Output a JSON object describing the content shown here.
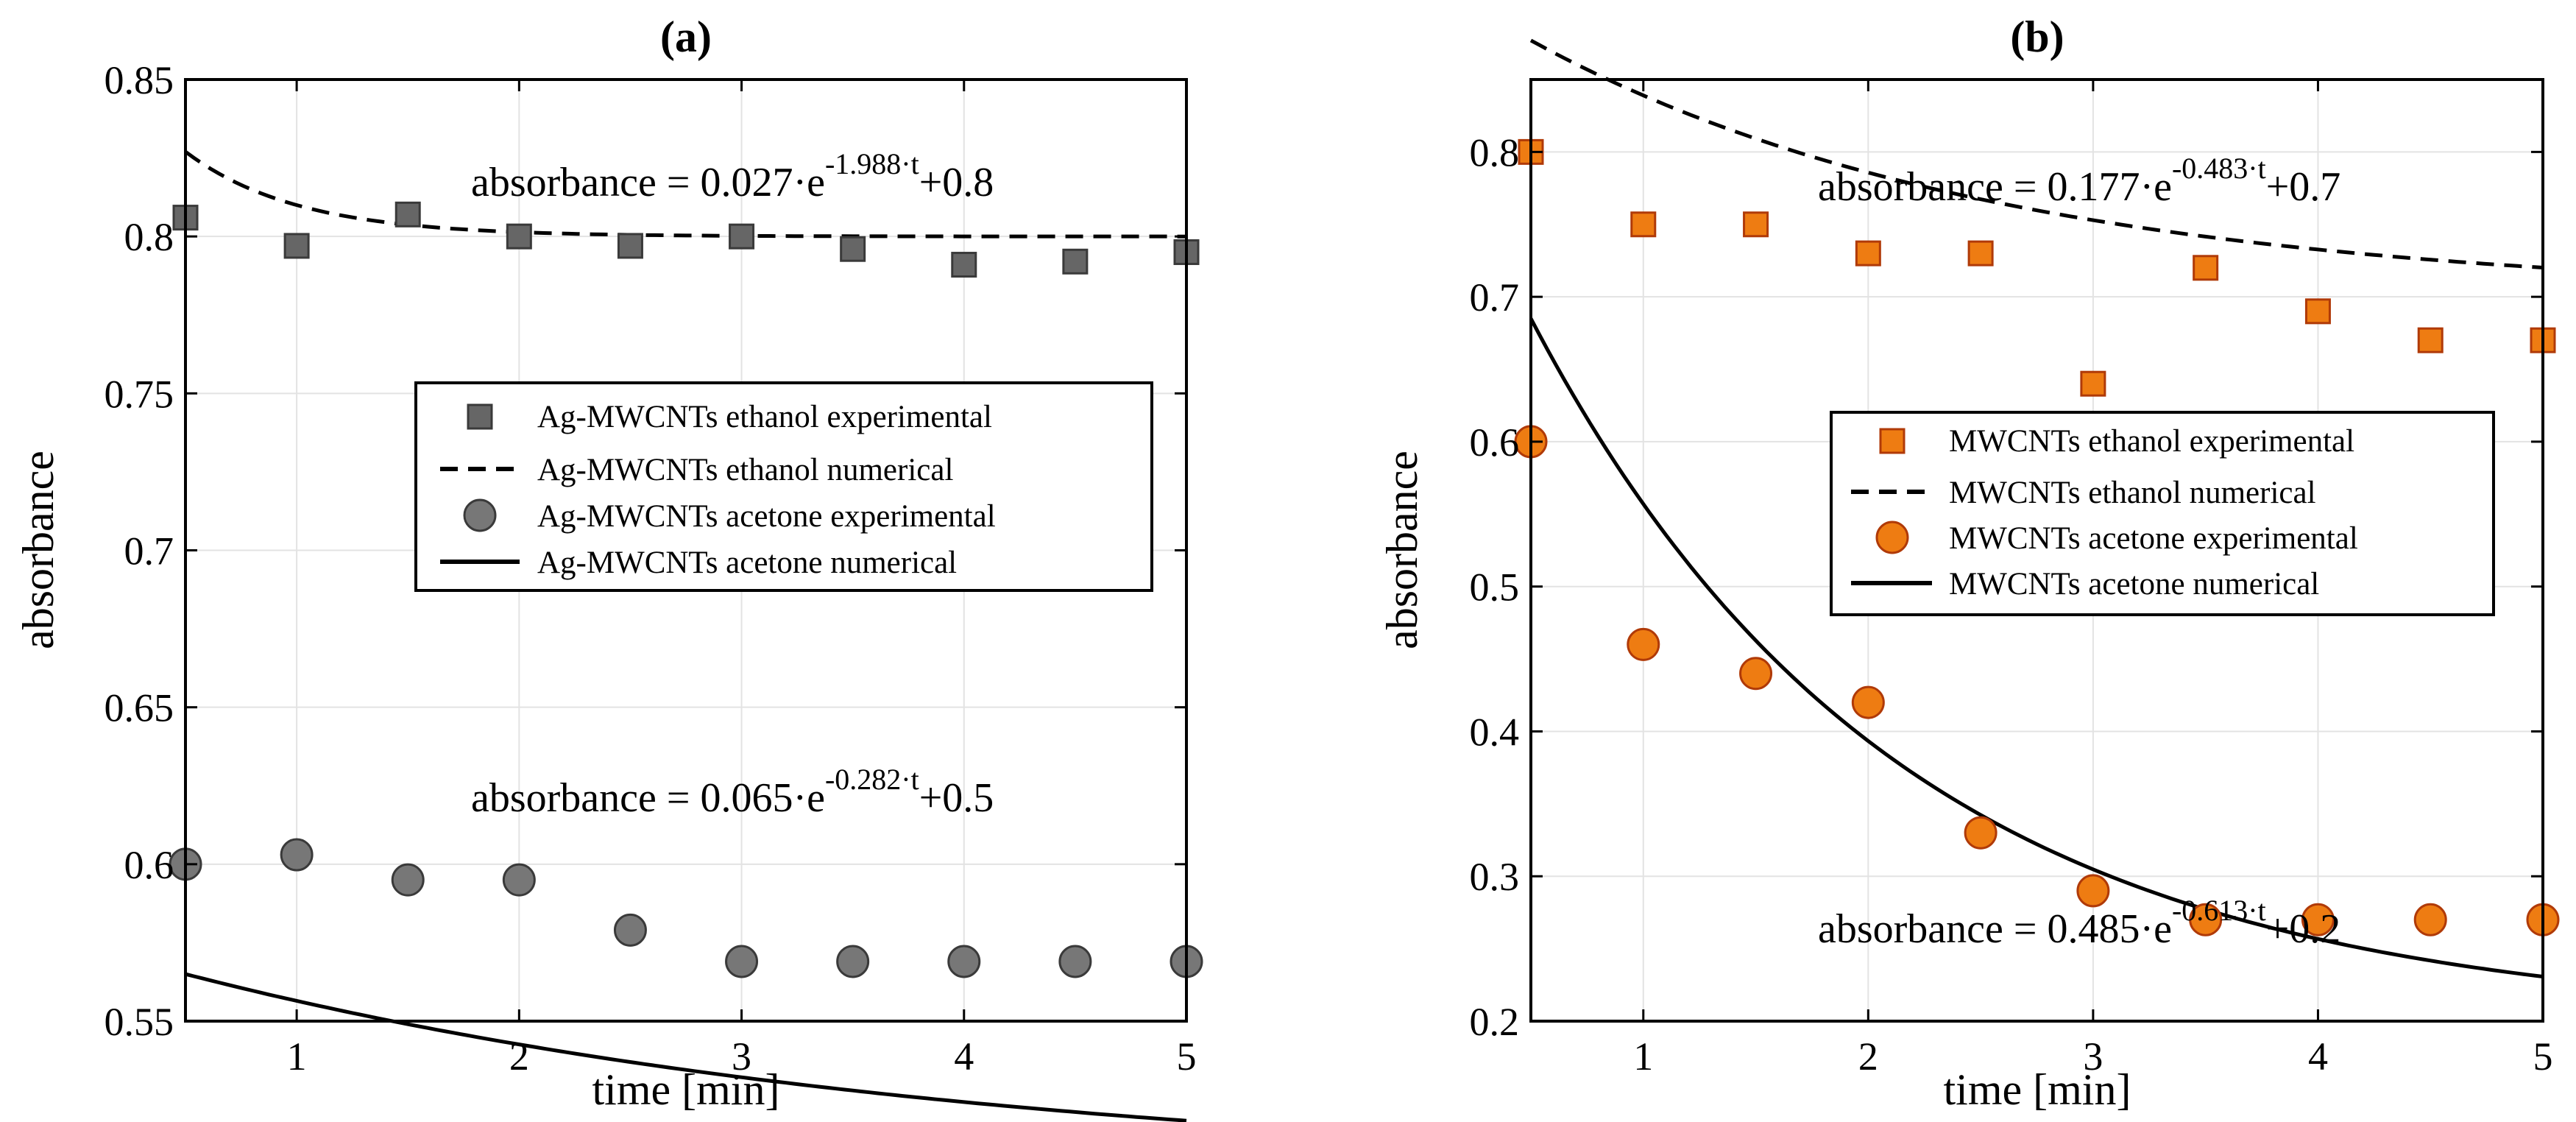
{
  "chart_data": [
    {
      "panel": "a",
      "type": "scatter",
      "title": "(a)",
      "xlabel": "time [min]",
      "ylabel": "absorbance",
      "xlim": [
        0.5,
        5
      ],
      "ylim": [
        0.55,
        0.85
      ],
      "xticks": [
        1,
        2,
        3,
        4,
        5
      ],
      "yticks": [
        0.55,
        0.6,
        0.65,
        0.7,
        0.75,
        0.8,
        0.85
      ],
      "xtick_labels": [
        "1",
        "2",
        "3",
        "4",
        "5"
      ],
      "ytick_labels": [
        "0.55",
        "0.6",
        "0.65",
        "0.7",
        "0.75",
        "0.8",
        "0.85"
      ],
      "grid": true,
      "legend_position": "center-right",
      "series": [
        {
          "name": "Ag-MWCNTs ethanol experimental",
          "kind": "marker",
          "marker": "square",
          "color": "#666666",
          "edge": "#3a3a3a",
          "x": [
            0.5,
            1,
            1.5,
            2,
            2.5,
            3,
            3.5,
            4,
            4.5,
            5
          ],
          "y": [
            0.806,
            0.797,
            0.807,
            0.8,
            0.797,
            0.8,
            0.796,
            0.791,
            0.792,
            0.795
          ]
        },
        {
          "name": "Ag-MWCNTs ethanol numerical",
          "kind": "line",
          "style": "dashed",
          "color": "#000000",
          "model": {
            "a": 0.027,
            "b": 1.988,
            "c": 0.8,
            "offset": 0.5
          }
        },
        {
          "name": "Ag-MWCNTs acetone experimental",
          "kind": "marker",
          "marker": "circle",
          "color": "#777777",
          "edge": "#3a3a3a",
          "x": [
            0.5,
            1,
            1.5,
            2,
            2.5,
            3,
            3.5,
            4,
            4.5,
            5
          ],
          "y": [
            0.6,
            0.603,
            0.595,
            0.595,
            0.579,
            0.569,
            0.569,
            0.569,
            0.569,
            0.569
          ]
        },
        {
          "name": "Ag-MWCNTs acetone numerical",
          "kind": "line",
          "style": "solid",
          "color": "#000000",
          "model": {
            "a": 0.065,
            "b": 0.282,
            "c": 0.5,
            "offset": 0.5
          }
        }
      ],
      "annotations": [
        {
          "prefix": "absorbance = 0.027·e",
          "exponent": "-1.988·t",
          "suffix": "+0.8"
        },
        {
          "prefix": "absorbance = 0.065·e",
          "exponent": "-0.282·t",
          "suffix": "+0.5"
        }
      ]
    },
    {
      "panel": "b",
      "type": "scatter",
      "title": "(b)",
      "xlabel": "time [min]",
      "ylabel": "absorbance",
      "xlim": [
        0.5,
        5
      ],
      "ylim": [
        0.2,
        0.85
      ],
      "xticks": [
        1,
        2,
        3,
        4,
        5
      ],
      "yticks": [
        0.2,
        0.3,
        0.4,
        0.5,
        0.6,
        0.7,
        0.8
      ],
      "xtick_labels": [
        "1",
        "2",
        "3",
        "4",
        "5"
      ],
      "ytick_labels": [
        "0.2",
        "0.3",
        "0.4",
        "0.5",
        "0.6",
        "0.7",
        "0.8"
      ],
      "grid": true,
      "legend_position": "center-right",
      "series": [
        {
          "name": "MWCNTs ethanol experimental",
          "kind": "marker",
          "marker": "square",
          "color": "#ee7c12",
          "edge": "#b03a08",
          "x": [
            0.5,
            1,
            1.5,
            2,
            2.5,
            3,
            3.5,
            4,
            4.5,
            5
          ],
          "y": [
            0.8,
            0.75,
            0.75,
            0.73,
            0.73,
            0.64,
            0.72,
            0.69,
            0.67,
            0.67
          ]
        },
        {
          "name": "MWCNTs ethanol numerical",
          "kind": "line",
          "style": "dashed",
          "color": "#000000",
          "model": {
            "a": 0.177,
            "b": 0.483,
            "c": 0.7,
            "offset": 0.5
          }
        },
        {
          "name": "MWCNTs acetone experimental",
          "kind": "marker",
          "marker": "circle",
          "color": "#ee7c12",
          "edge": "#b03a08",
          "x": [
            0.5,
            1,
            1.5,
            2,
            2.5,
            3,
            3.5,
            4,
            4.5,
            5
          ],
          "y": [
            0.6,
            0.46,
            0.44,
            0.42,
            0.33,
            0.29,
            0.27,
            0.27,
            0.27,
            0.27
          ]
        },
        {
          "name": "MWCNTs acetone numerical",
          "kind": "line",
          "style": "solid",
          "color": "#000000",
          "model": {
            "a": 0.485,
            "b": 0.613,
            "c": 0.2,
            "offset": 0.5
          }
        }
      ],
      "annotations": [
        {
          "prefix": "absorbance = 0.177·e",
          "exponent": "-0.483·t",
          "suffix": "+0.7"
        },
        {
          "prefix": "absorbance = 0.485·e",
          "exponent": "-0.613·t",
          "suffix": "+0.2"
        }
      ]
    }
  ]
}
